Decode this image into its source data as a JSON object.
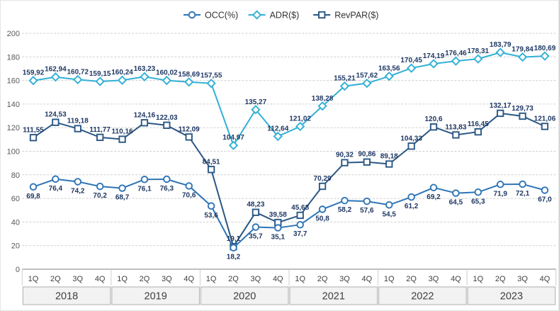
{
  "chart_data": {
    "type": "line",
    "grid": true,
    "legend_position": "top",
    "label_color": "#1f3864",
    "y_axis": {
      "min": 0,
      "max": 200,
      "tick_step": 20,
      "ticks": [
        0,
        20,
        40,
        60,
        80,
        100,
        120,
        140,
        160,
        180,
        200
      ]
    },
    "x_labels": [
      "1Q",
      "2Q",
      "3Q",
      "4Q",
      "1Q",
      "2Q",
      "3Q",
      "4Q",
      "1Q",
      "2Q",
      "3Q",
      "4Q",
      "1Q",
      "2Q",
      "3Q",
      "4Q",
      "1Q",
      "2Q",
      "3Q",
      "4Q",
      "1Q",
      "2Q",
      "3Q",
      "4Q"
    ],
    "year_groups": [
      "2018",
      "2019",
      "2020",
      "2021",
      "2022",
      "2023"
    ],
    "series": [
      {
        "key": "occ",
        "name": "OCC(%)",
        "marker": "circle",
        "color": "#2e75b6",
        "label_position": "below",
        "values": [
          69.8,
          76.4,
          74.2,
          70.2,
          68.7,
          76.1,
          76.3,
          70.6,
          53.6,
          18.2,
          35.7,
          35.1,
          37.7,
          50.8,
          58.2,
          57.6,
          54.5,
          61.2,
          69.2,
          64.5,
          65.3,
          71.9,
          72.1,
          67.0
        ],
        "labels": [
          "69,8",
          "76,4",
          "74,2",
          "70,2",
          "68,7",
          "76,1",
          "76,3",
          "70,6",
          "53,6",
          "18,2",
          "35,7",
          "35,1",
          "37,7",
          "50,8",
          "58,2",
          "57,6",
          "54,5",
          "61,2",
          "69,2",
          "64,5",
          "65,3",
          "71,9",
          "72,1",
          "67,0"
        ]
      },
      {
        "key": "adr",
        "name": "ADR($)",
        "marker": "diamond",
        "color": "#31b0d5",
        "label_position": "above",
        "values": [
          159.92,
          162.94,
          160.72,
          159.15,
          160.24,
          163.23,
          160.02,
          158.69,
          157.55,
          104.97,
          135.27,
          112.64,
          121.02,
          138.28,
          155.21,
          157.62,
          163.56,
          170.45,
          174.19,
          176.46,
          178.31,
          183.79,
          179.84,
          180.69
        ],
        "labels": [
          "159,92",
          "162,94",
          "160,72",
          "159,15",
          "160,24",
          "163,23",
          "160,02",
          "158,69",
          "157,55",
          "104,97",
          "135,27",
          "112,64",
          "121,02",
          "138,28",
          "155,21",
          "157,62",
          "163,56",
          "170,45",
          "174,19",
          "176,46",
          "178,31",
          "183,79",
          "179,84",
          "180,69"
        ]
      },
      {
        "key": "revpar",
        "name": "RevPAR($)",
        "marker": "square",
        "color": "#2a5783",
        "label_position": "above",
        "values": [
          111.55,
          124.53,
          119.18,
          111.77,
          110.16,
          124.16,
          122.03,
          112.09,
          84.51,
          19.1,
          48.23,
          39.58,
          45.68,
          70.29,
          90.32,
          90.86,
          89.18,
          104.33,
          120.6,
          113.83,
          116.45,
          132.17,
          129.73,
          121.06
        ],
        "labels": [
          "111,55",
          "124,53",
          "119,18",
          "111,77",
          "110,16",
          "124,16",
          "122,03",
          "112,09",
          "84,51",
          "19,1",
          "48,23",
          "39,58",
          "45,68",
          "70,29",
          "90,32",
          "90,86",
          "89,18",
          "104,33",
          "120,6",
          "113,83",
          "116,45",
          "132,17",
          "129,73",
          "121,06"
        ]
      }
    ]
  }
}
